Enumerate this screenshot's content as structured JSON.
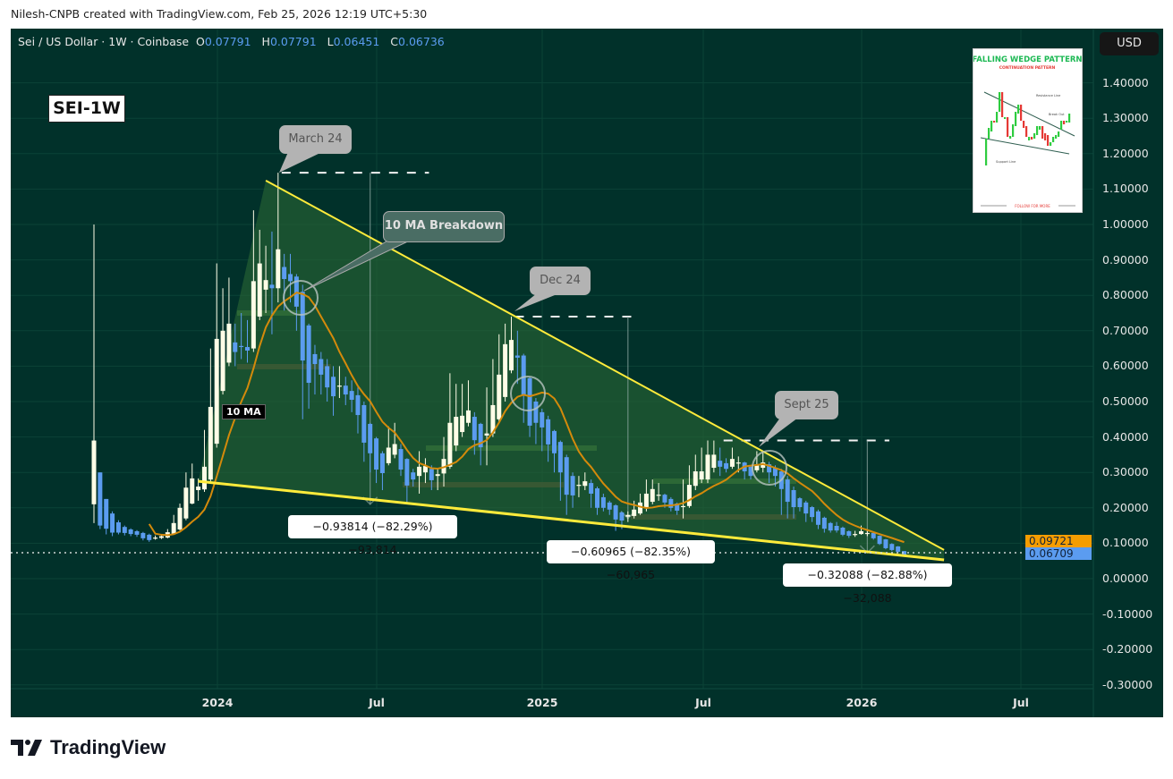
{
  "credit": "Nilesh-CNPB created with TradingView.com, Feb 25, 2026 12:19 UTC+5:30",
  "legend": {
    "symbol": "Sei / US Dollar · 1W · Coinbase",
    "o_label": "O",
    "o": "0.07791",
    "h_label": "H",
    "h": "0.07791",
    "l_label": "L",
    "l": "0.06451",
    "c_label": "C",
    "c": "0.06736"
  },
  "currency_button": "USD",
  "chart_label": "SEI-1W",
  "ma_label": "10 MA",
  "colors": {
    "background": "#01312a",
    "up": "#fffde7",
    "down": "#5b9cf0",
    "ma": "#d48a0b",
    "trendline": "#ffeb3b",
    "wedge_fill": "#2e6b35",
    "ma_price_label": "#f59d00",
    "last_price_label": "#5b9cf0"
  },
  "chart_data": {
    "type": "candlestick",
    "interval": "1W",
    "exchange": "Coinbase",
    "price_axis": {
      "ticks": [
        "1.40000",
        "1.30000",
        "1.20000",
        "1.10000",
        "1.00000",
        "0.90000",
        "0.80000",
        "0.70000",
        "0.60000",
        "0.50000",
        "0.40000",
        "0.30000",
        "0.20000",
        "0.10000",
        "0.00000",
        "-0.10000",
        "-0.20000",
        "-0.30000"
      ],
      "range": [
        -0.33,
        1.48
      ]
    },
    "time_axis": {
      "ticks": [
        "2024",
        "Jul",
        "2025",
        "Jul",
        "2026",
        "Jul"
      ]
    },
    "ohlc": [
      [
        0.21,
        1.0,
        0.157,
        0.39
      ],
      [
        0.3,
        0.3,
        0.14,
        0.15
      ],
      [
        0.225,
        0.225,
        0.125,
        0.141
      ],
      [
        0.184,
        0.19,
        0.12,
        0.13
      ],
      [
        0.159,
        0.165,
        0.125,
        0.13
      ],
      [
        0.146,
        0.15,
        0.122,
        0.129
      ],
      [
        0.139,
        0.142,
        0.12,
        0.126
      ],
      [
        0.134,
        0.137,
        0.118,
        0.124
      ],
      [
        0.129,
        0.132,
        0.108,
        0.114
      ],
      [
        0.124,
        0.127,
        0.104,
        0.109
      ],
      [
        0.115,
        0.122,
        0.11,
        0.116
      ],
      [
        0.115,
        0.125,
        0.112,
        0.12
      ],
      [
        0.116,
        0.14,
        0.114,
        0.131
      ],
      [
        0.126,
        0.18,
        0.124,
        0.157
      ],
      [
        0.139,
        0.212,
        0.136,
        0.2
      ],
      [
        0.17,
        0.3,
        0.165,
        0.257
      ],
      [
        0.212,
        0.325,
        0.21,
        0.283
      ],
      [
        0.25,
        0.283,
        0.22,
        0.26
      ],
      [
        0.252,
        0.42,
        0.245,
        0.316
      ],
      [
        0.28,
        0.65,
        0.27,
        0.485
      ],
      [
        0.381,
        0.89,
        0.37,
        0.677
      ],
      [
        0.53,
        0.82,
        0.52,
        0.7
      ],
      [
        0.61,
        0.85,
        0.6,
        0.72
      ],
      [
        0.667,
        0.72,
        0.6,
        0.64
      ],
      [
        0.657,
        0.75,
        0.62,
        0.656
      ],
      [
        0.654,
        0.73,
        0.61,
        0.644
      ],
      [
        0.65,
        1.04,
        0.64,
        0.84
      ],
      [
        0.74,
        0.985,
        0.73,
        0.89
      ],
      [
        0.816,
        0.94,
        0.75,
        0.843
      ],
      [
        0.83,
        0.98,
        0.69,
        0.82
      ],
      [
        0.82,
        1.146,
        0.78,
        0.93
      ],
      [
        0.88,
        0.917,
        0.757,
        0.846
      ],
      [
        0.86,
        0.917,
        0.78,
        0.84
      ],
      [
        0.853,
        0.86,
        0.7,
        0.768
      ],
      [
        0.81,
        0.83,
        0.45,
        0.616
      ],
      [
        0.715,
        0.72,
        0.48,
        0.553
      ],
      [
        0.634,
        0.66,
        0.52,
        0.606
      ],
      [
        0.62,
        0.64,
        0.52,
        0.576
      ],
      [
        0.6,
        0.62,
        0.5,
        0.54
      ],
      [
        0.57,
        0.6,
        0.46,
        0.515
      ],
      [
        0.545,
        0.6,
        0.51,
        0.545
      ],
      [
        0.545,
        0.57,
        0.49,
        0.52
      ],
      [
        0.53,
        0.56,
        0.47,
        0.505
      ],
      [
        0.518,
        0.54,
        0.41,
        0.462
      ],
      [
        0.49,
        0.5,
        0.33,
        0.384
      ],
      [
        0.437,
        0.44,
        0.3,
        0.354
      ],
      [
        0.396,
        0.4,
        0.27,
        0.308
      ],
      [
        0.354,
        0.36,
        0.25,
        0.298
      ],
      [
        0.326,
        0.43,
        0.32,
        0.37
      ],
      [
        0.35,
        0.44,
        0.34,
        0.38
      ],
      [
        0.366,
        0.38,
        0.29,
        0.308
      ],
      [
        0.338,
        0.34,
        0.21,
        0.263
      ],
      [
        0.3,
        0.31,
        0.26,
        0.28
      ],
      [
        0.29,
        0.36,
        0.24,
        0.316
      ],
      [
        0.3,
        0.34,
        0.27,
        0.318
      ],
      [
        0.31,
        0.32,
        0.25,
        0.278
      ],
      [
        0.29,
        0.31,
        0.25,
        0.295
      ],
      [
        0.297,
        0.4,
        0.26,
        0.338
      ],
      [
        0.316,
        0.58,
        0.31,
        0.44
      ],
      [
        0.376,
        0.55,
        0.36,
        0.457
      ],
      [
        0.414,
        0.55,
        0.4,
        0.46
      ],
      [
        0.44,
        0.56,
        0.43,
        0.475
      ],
      [
        0.457,
        0.47,
        0.35,
        0.391
      ],
      [
        0.437,
        0.44,
        0.32,
        0.371
      ],
      [
        0.404,
        0.54,
        0.32,
        0.41
      ],
      [
        0.41,
        0.62,
        0.4,
        0.49
      ],
      [
        0.45,
        0.69,
        0.44,
        0.576
      ],
      [
        0.513,
        0.72,
        0.5,
        0.662
      ],
      [
        0.588,
        0.74,
        0.58,
        0.674
      ],
      [
        0.63,
        0.7,
        0.55,
        0.624
      ],
      [
        0.63,
        0.635,
        0.44,
        0.52
      ],
      [
        0.566,
        0.57,
        0.4,
        0.432
      ],
      [
        0.5,
        0.51,
        0.38,
        0.44
      ],
      [
        0.47,
        0.48,
        0.36,
        0.427
      ],
      [
        0.45,
        0.46,
        0.33,
        0.379
      ],
      [
        0.417,
        0.42,
        0.3,
        0.354
      ],
      [
        0.386,
        0.39,
        0.22,
        0.3
      ],
      [
        0.343,
        0.35,
        0.18,
        0.237
      ],
      [
        0.29,
        0.3,
        0.2,
        0.235
      ],
      [
        0.265,
        0.29,
        0.23,
        0.265
      ],
      [
        0.262,
        0.3,
        0.25,
        0.275
      ],
      [
        0.27,
        0.28,
        0.2,
        0.24
      ],
      [
        0.255,
        0.26,
        0.18,
        0.2
      ],
      [
        0.23,
        0.24,
        0.19,
        0.2
      ],
      [
        0.215,
        0.22,
        0.18,
        0.195
      ],
      [
        0.207,
        0.21,
        0.135,
        0.167
      ],
      [
        0.187,
        0.19,
        0.14,
        0.164
      ],
      [
        0.175,
        0.19,
        0.16,
        0.18
      ],
      [
        0.177,
        0.22,
        0.17,
        0.195
      ],
      [
        0.184,
        0.24,
        0.18,
        0.215
      ],
      [
        0.2,
        0.28,
        0.19,
        0.24
      ],
      [
        0.217,
        0.28,
        0.21,
        0.253
      ],
      [
        0.237,
        0.27,
        0.22,
        0.237
      ],
      [
        0.237,
        0.24,
        0.2,
        0.215
      ],
      [
        0.225,
        0.23,
        0.19,
        0.2
      ],
      [
        0.212,
        0.215,
        0.18,
        0.192
      ],
      [
        0.205,
        0.28,
        0.17,
        0.205
      ],
      [
        0.205,
        0.32,
        0.2,
        0.265
      ],
      [
        0.262,
        0.35,
        0.25,
        0.303
      ],
      [
        0.28,
        0.37,
        0.27,
        0.303
      ],
      [
        0.28,
        0.39,
        0.27,
        0.35
      ],
      [
        0.313,
        0.39,
        0.3,
        0.35
      ],
      [
        0.333,
        0.37,
        0.29,
        0.316
      ],
      [
        0.326,
        0.34,
        0.3,
        0.31
      ],
      [
        0.316,
        0.37,
        0.31,
        0.338
      ],
      [
        0.328,
        0.345,
        0.3,
        0.328
      ],
      [
        0.328,
        0.33,
        0.28,
        0.303
      ],
      [
        0.316,
        0.32,
        0.28,
        0.29
      ],
      [
        0.306,
        0.36,
        0.3,
        0.323
      ],
      [
        0.313,
        0.36,
        0.3,
        0.328
      ],
      [
        0.323,
        0.33,
        0.27,
        0.3
      ],
      [
        0.313,
        0.32,
        0.26,
        0.29
      ],
      [
        0.303,
        0.31,
        0.18,
        0.253
      ],
      [
        0.28,
        0.29,
        0.17,
        0.217
      ],
      [
        0.25,
        0.26,
        0.17,
        0.202
      ],
      [
        0.227,
        0.23,
        0.19,
        0.202
      ],
      [
        0.215,
        0.22,
        0.16,
        0.184
      ],
      [
        0.202,
        0.205,
        0.16,
        0.174
      ],
      [
        0.19,
        0.195,
        0.14,
        0.152
      ],
      [
        0.172,
        0.175,
        0.13,
        0.141
      ],
      [
        0.157,
        0.16,
        0.13,
        0.136
      ],
      [
        0.149,
        0.16,
        0.13,
        0.136
      ],
      [
        0.144,
        0.147,
        0.12,
        0.124
      ],
      [
        0.134,
        0.136,
        0.115,
        0.121
      ],
      [
        0.126,
        0.135,
        0.118,
        0.126
      ],
      [
        0.126,
        0.15,
        0.124,
        0.134
      ],
      [
        0.129,
        0.14,
        0.12,
        0.129
      ],
      [
        0.129,
        0.13,
        0.11,
        0.114
      ],
      [
        0.121,
        0.122,
        0.095,
        0.098
      ],
      [
        0.111,
        0.112,
        0.083,
        0.086
      ],
      [
        0.098,
        0.1,
        0.078,
        0.081
      ],
      [
        0.091,
        0.092,
        0.072,
        0.076
      ],
      [
        0.07791,
        0.07791,
        0.06451,
        0.06736
      ]
    ],
    "moving_average": {
      "type": "SMA",
      "length": 10,
      "last_value": "0.09721"
    },
    "last_price": "0.06709",
    "annotations": {
      "callouts": [
        "March 24",
        "10 MA Breakdown",
        "Dec 24",
        "Sept 25"
      ],
      "measurements": [
        "−0.93814 (−82.29%) −93,814",
        "−0.60965 (−82.35%) −60,965",
        "−0.32088 (−82.88%) −32,088"
      ],
      "pattern": "falling wedge"
    }
  },
  "inset": {
    "title": "FALLING WEDGE PATTERN",
    "subtitle": "CONTINUATION PATTERN",
    "resistance": "Resistance Line",
    "breakout": "Break Out",
    "support": "Support Line",
    "footer": "FOLLOW FOR MORE"
  },
  "footer_logo": "TradingView"
}
